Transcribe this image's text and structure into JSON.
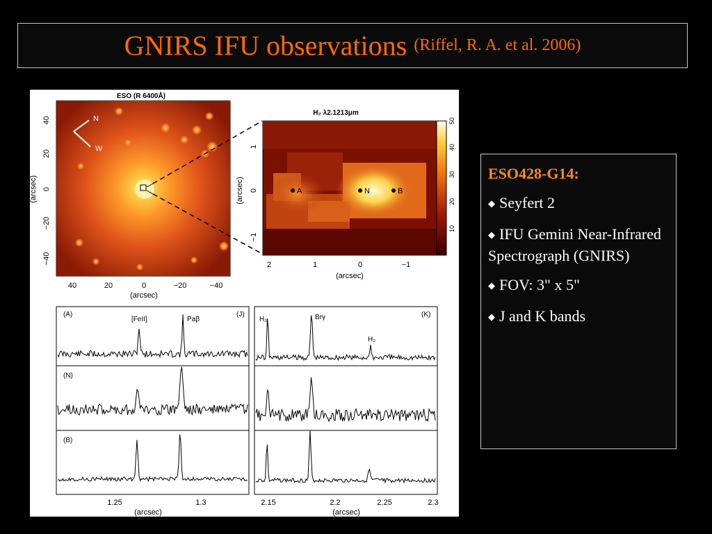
{
  "slide": {
    "title": "GNIRS IFU observations",
    "citation": "(Riffel, R. A. et al. 2006)"
  },
  "figure": {
    "optical": {
      "title": "ESO (R 6400Å)",
      "y_label": "(arcsec)",
      "x_label": "(arcsec)",
      "y_ticks": [
        "40",
        "20",
        "0",
        "−20",
        "−40"
      ],
      "x_ticks": [
        "40",
        "20",
        "0",
        "−20",
        "−40"
      ],
      "compass_n": "N",
      "compass_w": "W"
    },
    "h2_map": {
      "title": "H₂ λ2.1213μm",
      "y_label": "(arcsec)",
      "x_label": "(arcsec)",
      "y_ticks": [
        "1",
        "0",
        "−1"
      ],
      "x_ticks": [
        "2",
        "1",
        "0",
        "−1"
      ],
      "colorbar_ticks": [
        "50",
        "40",
        "30",
        "20",
        "10"
      ],
      "points": [
        "A",
        "N",
        "B"
      ]
    },
    "spectra": {
      "panel_labels_j": [
        "(A)",
        "(N)",
        "(B)"
      ],
      "band_j": "(J)",
      "band_k": "(K)",
      "line_feii": "[FeII]",
      "line_pab": "Paβ",
      "line_h2_a": "H₂",
      "line_brg": "Brγ",
      "line_h2_b": "H₂",
      "j_x_ticks": [
        "1.25",
        "1.3"
      ],
      "k_x_ticks": [
        "2.15",
        "2.2",
        "2.25",
        "2.3"
      ],
      "x_label_j": "(arcsec)",
      "x_label_k": "(arcsec)"
    }
  },
  "info": {
    "heading": "ESO428-G14:",
    "bullets": [
      "Seyfert 2",
      "IFU Gemini Near-Infrared Spectrograph (GNIRS)",
      "FOV:  3\" x 5\"",
      "J and K bands"
    ]
  },
  "colors": {
    "title": "#ff6a00",
    "heading": "#ff8c1a",
    "background": "#000000"
  }
}
